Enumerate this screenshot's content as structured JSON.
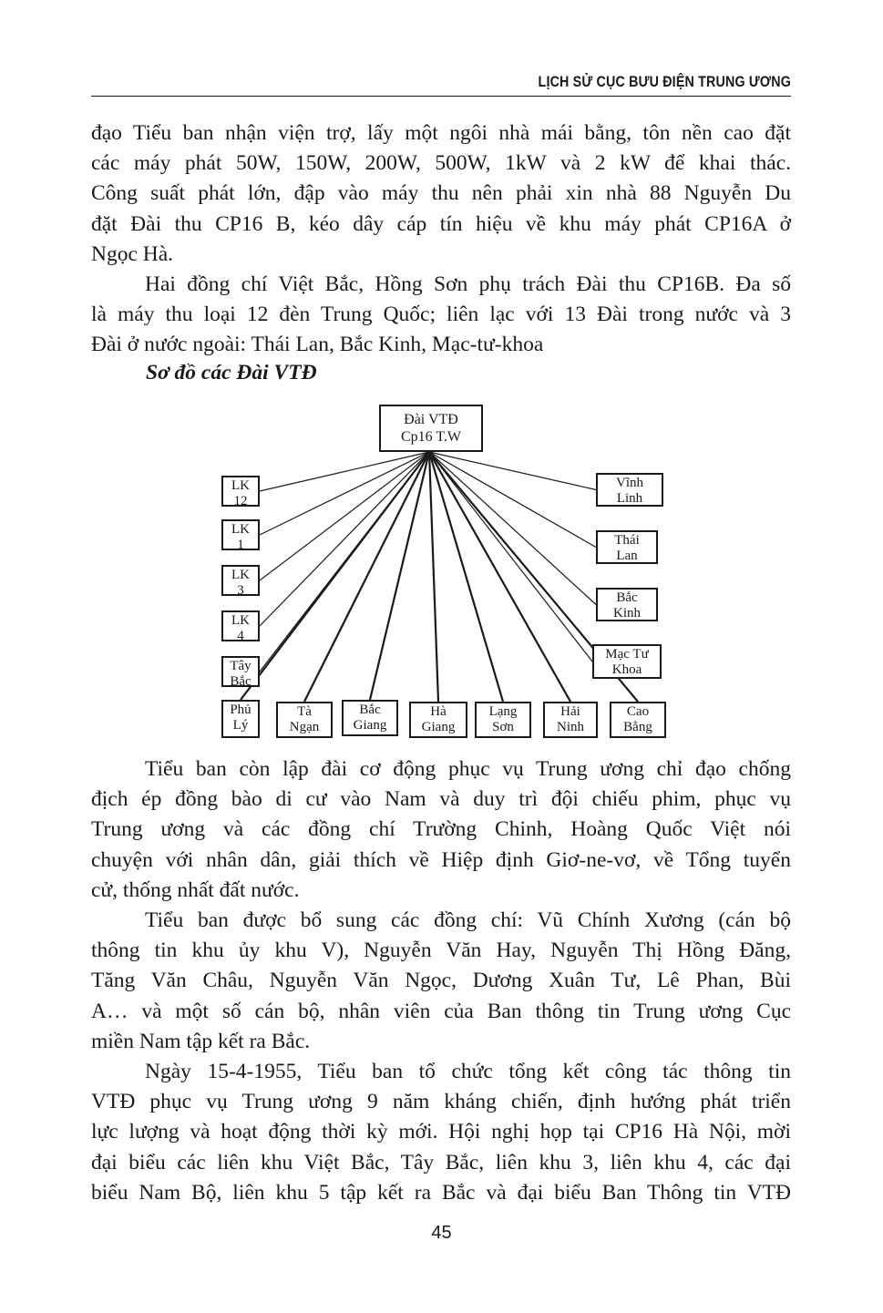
{
  "header": {
    "running_title": "LỊCH SỬ CỤC BƯU ĐIỆN TRUNG ƯƠNG"
  },
  "paragraphs": {
    "p1": [
      "đạo Tiểu ban nhận viện trợ, lấy một ngôi nhà mái bằng, tôn nền cao đặt",
      "các máy phát 50W, 150W, 200W, 500W, 1kW và 2 kW để khai thác.",
      "Công suất phát lớn, đập vào máy thu nên phải xin nhà 88 Nguyễn Du",
      "đặt Đài thu CP16 B, kéo dây cáp tín hiệu về khu máy phát CP16A ở",
      "Ngọc Hà."
    ],
    "p2": [
      "Hai đồng chí Việt Bắc, Hồng Sơn phụ trách Đài thu CP16B. Đa số",
      "là máy thu loại 12 đèn Trung Quốc; liên lạc với 13 Đài trong nước và 3",
      "Đài ở nước ngoài: Thái Lan, Bắc Kinh, Mạc-tư-khoa"
    ],
    "caption": "Sơ đồ các Đài VTĐ",
    "p3": [
      "Tiểu ban còn lập đài cơ động phục vụ Trung ương chỉ đạo chống",
      "địch ép đồng bào di cư vào Nam và duy trì đội chiếu phim, phục vụ",
      "Trung ương và các đồng chí Trường Chinh, Hoàng Quốc Việt nói",
      "chuyện với nhân dân, giải thích về Hiệp định Giơ-ne-vơ, về Tổng tuyển",
      "cử, thống nhất đất nước."
    ],
    "p4": [
      "Tiểu ban được bổ sung các đồng chí: Vũ Chính Xương (cán bộ",
      "thông tin khu ủy khu V), Nguyễn Văn Hay, Nguyễn Thị Hồng Đăng,",
      "Tăng Văn Châu, Nguyễn Văn Ngọc, Dương Xuân Tư, Lê Phan, Bùi",
      "A… và một số cán bộ, nhân viên của Ban thông tin Trung ương Cục",
      "miền Nam tập kết ra Bắc."
    ],
    "p5": [
      "Ngày 15-4-1955, Tiểu ban tổ chức tổng kết công tác thông tin",
      "VTĐ phục vụ Trung ương 9 năm kháng chiến, định hướng phát triển",
      "lực lượng và hoạt động thời kỳ mới. Hội nghị họp tại CP16 Hà Nội, mời",
      "đại biểu các liên khu Việt Bắc, Tây Bắc, liên khu 3, liên khu 4, các đại",
      "biểu Nam Bộ, liên khu 5 tập kết ra Bắc và đại biểu Ban Thông tin VTĐ"
    ]
  },
  "diagram": {
    "root": [
      "Đài VTĐ",
      "Cp16 T.W"
    ],
    "left": [
      [
        "LK",
        "12"
      ],
      [
        "LK",
        "1"
      ],
      [
        "LK",
        "3"
      ],
      [
        "LK",
        "4"
      ],
      [
        "Tây",
        "Bắc"
      ]
    ],
    "right": [
      [
        "Vĩnh",
        "Linh"
      ],
      [
        "Thái",
        "Lan"
      ],
      [
        "Bắc",
        "Kinh"
      ],
      [
        "Mạc Tư",
        "Khoa"
      ]
    ],
    "bottom": [
      [
        "Phủ",
        "Lý"
      ],
      [
        "Tà",
        "Ngạn"
      ],
      [
        "Bắc",
        "Giang"
      ],
      [
        "Hà",
        "Giang"
      ],
      [
        "Lạng",
        "Sơn"
      ],
      [
        "Hải",
        "Ninh"
      ],
      [
        "Cao",
        "Bằng"
      ]
    ]
  },
  "footer": {
    "page_number": "45"
  }
}
